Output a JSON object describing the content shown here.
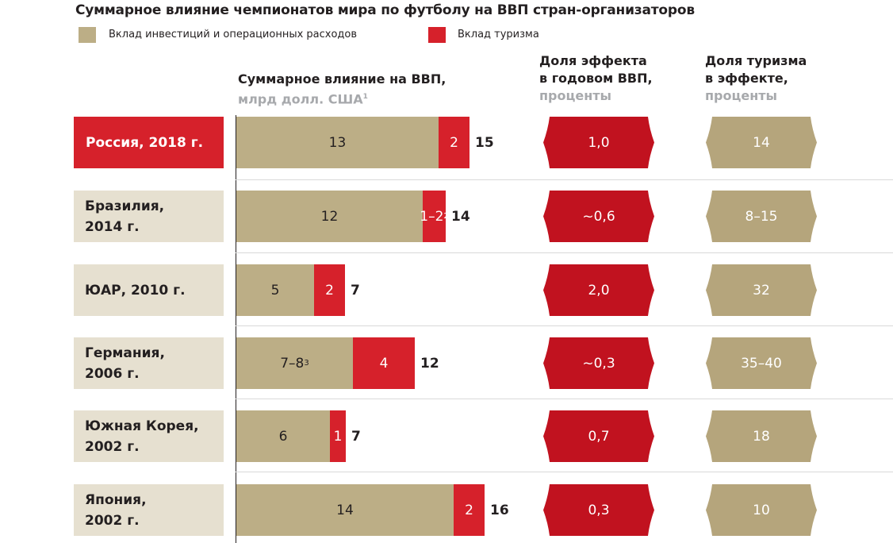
{
  "title": "Суммарное влияние чемпионатов мира по футболу на ВВП стран-организаторов",
  "legend": [
    {
      "label": "Вклад инвестиций и операционных расходов",
      "color": "#bcae86"
    },
    {
      "label": "Вклад туризма",
      "color": "#d6212b"
    }
  ],
  "columns": {
    "gdp": {
      "title": "Суммарное влияние на ВВП,",
      "subtitle": "млрд долл. США",
      "footnote": "1"
    },
    "share": {
      "title_line1": "Доля эффекта",
      "title_line2": "в годовом ВВП,",
      "subtitle": "проценты"
    },
    "tourism": {
      "title_line1": "Доля туризма",
      "title_line2": "в эффекте,",
      "subtitle": "проценты"
    }
  },
  "colors": {
    "investment": "#bcae86",
    "tourism": "#d6212b",
    "label_bg": "#e6e0d0",
    "host_bg": "#d6212b",
    "badge_red": "#c1121f",
    "badge_gold": "#b5a57c"
  },
  "chart_data": {
    "type": "bar",
    "orientation": "horizontal",
    "stacked": true,
    "xlim": [
      0,
      16
    ],
    "categories": [
      "Россия, 2018 г.",
      "Бразилия, 2014 г.",
      "ЮАР, 2010 г.",
      "Германия, 2006 г.",
      "Южная Корея, 2002 г.",
      "Япония, 2002 г."
    ],
    "series": [
      {
        "name": "Вклад инвестиций и операционных расходов",
        "values": [
          13,
          12,
          5,
          7.5,
          6,
          14
        ],
        "labels": [
          "13",
          "12",
          "5",
          "7–8",
          "6",
          "14"
        ],
        "label_footnotes": [
          "",
          "",
          "",
          "3",
          "",
          ""
        ]
      },
      {
        "name": "Вклад туризма",
        "values": [
          2,
          1.5,
          2,
          4,
          1,
          2
        ],
        "labels": [
          "2",
          "1–2",
          "2",
          "4",
          "1",
          "2"
        ],
        "label_footnotes": [
          "",
          "2",
          "",
          "",
          "",
          ""
        ]
      }
    ],
    "totals": [
      "15",
      "14",
      "7",
      "12",
      "7",
      "16"
    ],
    "share_of_gdp": [
      "1,0",
      "~0,6",
      "2,0",
      "~0,3",
      "0,7",
      "0,3"
    ],
    "tourism_share": [
      "14",
      "8–15",
      "32",
      "35–40",
      "18",
      "10"
    ]
  },
  "rows": [
    {
      "country": "Россия, 2018 г.",
      "host": true
    },
    {
      "country": "Бразилия,\n2014 г.",
      "host": false
    },
    {
      "country": "ЮАР, 2010 г.",
      "host": false
    },
    {
      "country": "Германия,\n2006 г.",
      "host": false
    },
    {
      "country": "Южная Корея,\n2002 г.",
      "host": false
    },
    {
      "country": "Япония,\n2002 г.",
      "host": false
    }
  ]
}
